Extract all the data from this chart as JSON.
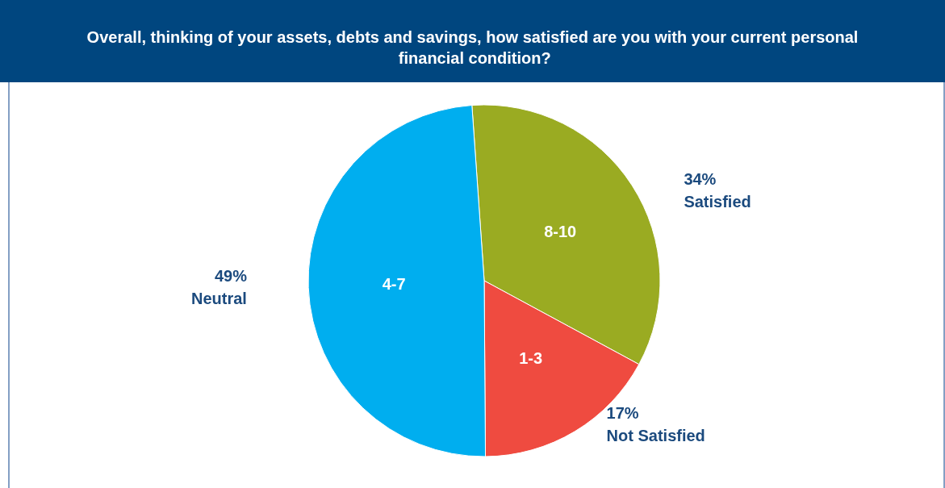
{
  "chart_data": {
    "type": "pie",
    "title": "Overall, thinking of your assets, debts and savings, how satisfied are you with your current personal financial condition?",
    "categories": [
      "8-10",
      "1-3",
      "4-7"
    ],
    "values": [
      34,
      17,
      49
    ],
    "colors": [
      "#9aab22",
      "#ef4b40",
      "#00aeef"
    ],
    "value_labels": [
      "34%",
      "17%",
      "49%"
    ],
    "annotations": [
      {
        "text": "Satisfied",
        "x": "8-10"
      },
      {
        "text": "Not Satisfied",
        "x": "1-3"
      },
      {
        "text": "Neutral",
        "x": "4-7"
      }
    ],
    "legend": false
  }
}
